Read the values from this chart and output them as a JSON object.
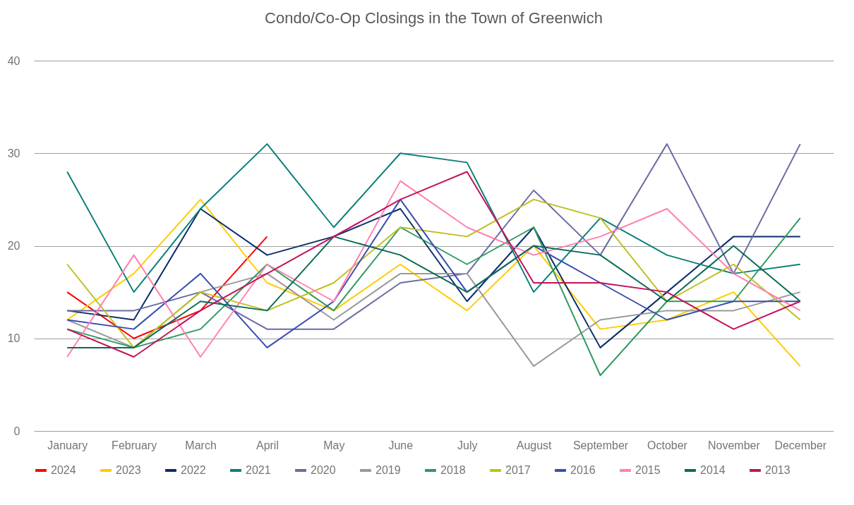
{
  "chart_data": {
    "type": "line",
    "title": "Condo/Co-Op Closings in the Town of Greenwich",
    "categories": [
      "January",
      "February",
      "March",
      "April",
      "May",
      "June",
      "July",
      "August",
      "September",
      "October",
      "November",
      "December"
    ],
    "ylim": [
      0,
      40
    ],
    "yticks": [
      0,
      10,
      20,
      30,
      40
    ],
    "grid": "y",
    "legend": "bottom",
    "marker": "none",
    "line_style": "solid",
    "series": [
      {
        "name": "2024",
        "color": "#ff0000",
        "values": [
          15,
          10,
          13,
          21,
          null,
          null,
          null,
          null,
          null,
          null,
          null,
          null
        ]
      },
      {
        "name": "2023",
        "color": "#ffcc00",
        "values": [
          12,
          17,
          25,
          16,
          13,
          18,
          13,
          20,
          11,
          12,
          15,
          7
        ]
      },
      {
        "name": "2022",
        "color": "#0b2d6b",
        "values": [
          13,
          12,
          24,
          19,
          21,
          24,
          14,
          22,
          9,
          15,
          21,
          21
        ]
      },
      {
        "name": "2021",
        "color": "#0b8078",
        "values": [
          28,
          15,
          24,
          31,
          22,
          30,
          29,
          15,
          23,
          19,
          17,
          18
        ]
      },
      {
        "name": "2020",
        "color": "#6b6ba6",
        "values": [
          13,
          13,
          15,
          11,
          11,
          16,
          17,
          26,
          19,
          31,
          17,
          31
        ]
      },
      {
        "name": "2019",
        "color": "#999999",
        "values": [
          12,
          9,
          15,
          17,
          12,
          17,
          17,
          7,
          12,
          13,
          13,
          15
        ]
      },
      {
        "name": "2018",
        "color": "#2e9960",
        "values": [
          11,
          9,
          11,
          18,
          13,
          22,
          18,
          22,
          6,
          14,
          14,
          23
        ]
      },
      {
        "name": "2017",
        "color": "#bfbf1f",
        "values": [
          18,
          9,
          15,
          13,
          16,
          22,
          21,
          25,
          23,
          14,
          18,
          12
        ]
      },
      {
        "name": "2016",
        "color": "#3b4cb0",
        "values": [
          12,
          11,
          17,
          9,
          14,
          25,
          15,
          20,
          16,
          12,
          14,
          14
        ]
      },
      {
        "name": "2015",
        "color": "#ff80b0",
        "values": [
          8,
          19,
          8,
          18,
          14,
          27,
          22,
          19,
          21,
          24,
          17,
          13
        ]
      },
      {
        "name": "2014",
        "color": "#0b6b56",
        "values": [
          9,
          9,
          14,
          13,
          21,
          19,
          15,
          20,
          19,
          14,
          20,
          14
        ]
      },
      {
        "name": "2013",
        "color": "#c4125c",
        "values": [
          11,
          8,
          13,
          17,
          21,
          25,
          28,
          16,
          16,
          15,
          11,
          14
        ]
      }
    ]
  }
}
